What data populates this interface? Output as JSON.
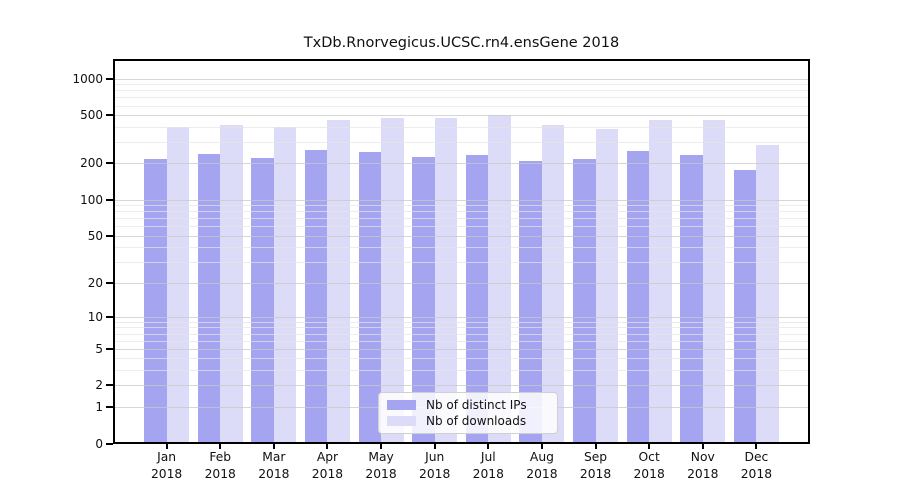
{
  "title": "TxDb.Rnorvegicus.UCSC.rn4.ensGene 2018",
  "chart_data": {
    "type": "bar",
    "title": "TxDb.Rnorvegicus.UCSC.rn4.ensGene 2018",
    "categories": [
      "Jan",
      "Feb",
      "Mar",
      "Apr",
      "May",
      "Jun",
      "Jul",
      "Aug",
      "Sep",
      "Oct",
      "Nov",
      "Dec"
    ],
    "category_year": "2018",
    "series": [
      {
        "name": "Nb of distinct IPs",
        "color": "#a4a4f0",
        "values": [
          212,
          233,
          217,
          252,
          241,
          218,
          226,
          203,
          212,
          245,
          226,
          172
        ]
      },
      {
        "name": "Nb of downloads",
        "color": "#dcdcf8",
        "values": [
          385,
          400,
          389,
          446,
          459,
          463,
          484,
          401,
          375,
          440,
          444,
          278
        ]
      }
    ],
    "yscale": "log10(value+1)",
    "ylabel": "",
    "xlabel": "",
    "yticks": [
      "0",
      "1",
      "2",
      "5",
      "10",
      "20",
      "50",
      "100",
      "200",
      "500",
      "1000"
    ],
    "minor_gridlines": [
      3,
      4,
      6,
      7,
      8,
      9,
      30,
      40,
      60,
      70,
      80,
      90,
      300,
      400,
      600,
      700,
      800,
      900
    ],
    "ylim": [
      0,
      1450
    ],
    "grid": true,
    "legend_position": "bottom-center-inside"
  },
  "legend": {
    "item1": "Nb of distinct IPs",
    "item2": "Nb of downloads"
  }
}
